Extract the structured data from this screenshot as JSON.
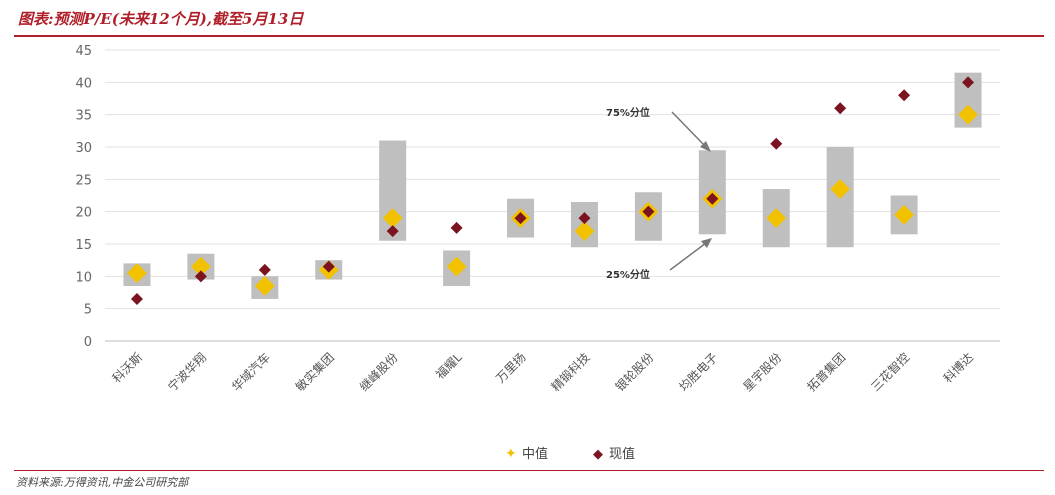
{
  "header": {
    "title": "图表:预测P/E(未来12个月),截至5月13日"
  },
  "footer": {
    "source": "资料来源:万得资讯,中金公司研究部"
  },
  "annotations": {
    "p75": "75%分位",
    "p25": "25%分位"
  },
  "legend": {
    "median": "中值",
    "current": "现值"
  },
  "colors": {
    "range_bar": "#bfbfbf",
    "median": "#f2c200",
    "current": "#7b1420",
    "rule": "#b0202a"
  },
  "chart_data": {
    "type": "range-bar-with-markers",
    "title": "预测P/E(未来12个月),截至5月13日",
    "ylim": [
      0,
      45
    ],
    "yticks": [
      0,
      5,
      10,
      15,
      20,
      25,
      30,
      35,
      40,
      45
    ],
    "grid": true,
    "legend_position": "bottom",
    "categories": [
      "科沃斯",
      "宁波华翔",
      "华域汽车",
      "敏实集团",
      "继峰股份",
      "福耀L",
      "万里扬",
      "精锻科技",
      "银轮股份",
      "均胜电子",
      "星宇股份",
      "拓普集团",
      "三花智控",
      "科博达"
    ],
    "series": [
      {
        "name": "25%分位",
        "values": [
          8.5,
          9.5,
          6.5,
          9.5,
          15.5,
          8.5,
          16,
          14.5,
          15.5,
          16.5,
          14.5,
          14.5,
          16.5,
          33
        ]
      },
      {
        "name": "75%分位",
        "values": [
          12,
          13.5,
          10,
          12.5,
          31,
          14,
          22,
          21.5,
          23,
          29.5,
          23.5,
          30,
          22.5,
          41.5
        ]
      },
      {
        "name": "中值",
        "values": [
          10.5,
          11.5,
          8.5,
          11,
          19,
          11.5,
          19,
          17,
          20,
          22,
          19,
          23.5,
          19.5,
          35
        ]
      },
      {
        "name": "现值",
        "values": [
          6.5,
          10,
          11,
          11.5,
          17,
          17.5,
          19,
          19,
          20,
          22,
          30.5,
          36,
          38,
          40
        ]
      }
    ]
  }
}
